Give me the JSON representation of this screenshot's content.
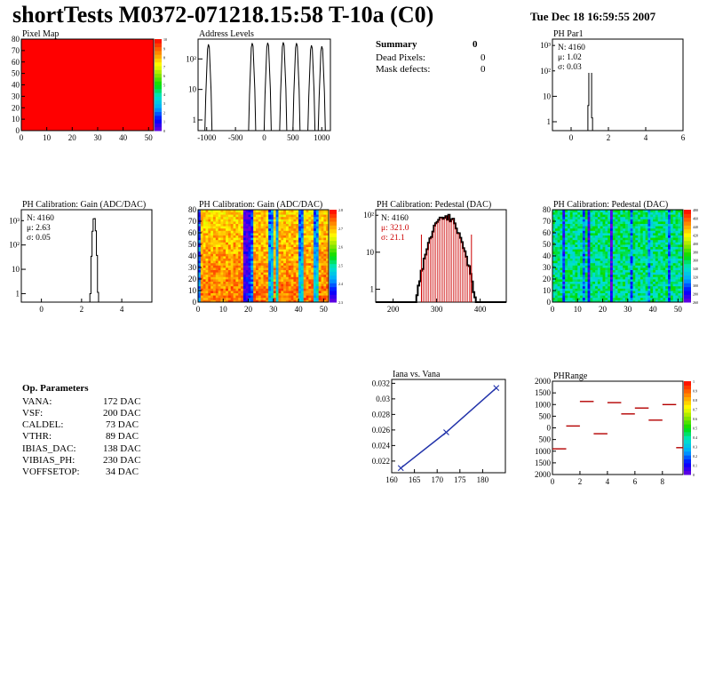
{
  "header": {
    "title": "shortTests M0372-071218.15:58 T-10a (C0)",
    "date": "Tue Dec 18 16:59:55 2007"
  },
  "summary": {
    "title": "Summary",
    "value": "0",
    "rows": [
      {
        "label": "Dead Pixels:",
        "value": "0"
      },
      {
        "label": "Mask defects:",
        "value": "0"
      }
    ]
  },
  "op_parameters": {
    "title": "Op. Parameters",
    "rows": [
      {
        "name": "VANA:",
        "value": "172 DAC"
      },
      {
        "name": "VSF:",
        "value": "200 DAC"
      },
      {
        "name": "CALDEL:",
        "value": "73 DAC"
      },
      {
        "name": "VTHR:",
        "value": "89 DAC"
      },
      {
        "name": "IBIAS_DAC:",
        "value": "138 DAC"
      },
      {
        "name": "VIBIAS_PH:",
        "value": "230 DAC"
      },
      {
        "name": "VOFFSETOP:",
        "value": "34 DAC"
      }
    ]
  },
  "colors": {
    "map_fill": "#ff0000",
    "hist_line": "#000000",
    "fit_line": "#cc0000",
    "iana_line": "#2233aa"
  },
  "chart_data": [
    {
      "id": "pixel_map",
      "type": "heatmap",
      "title": "Pixel Map",
      "xlim": [
        0,
        52
      ],
      "ylim": [
        0,
        80
      ],
      "xticks": [
        "0",
        "10",
        "20",
        "30",
        "40",
        "50"
      ],
      "yticks": [
        "0",
        "10",
        "20",
        "30",
        "40",
        "50",
        "60",
        "70",
        "80"
      ],
      "z_scale": [
        "0",
        "1",
        "2",
        "3",
        "4",
        "5",
        "6",
        "7",
        "8",
        "9",
        "10"
      ],
      "uniform_value": 10
    },
    {
      "id": "address_levels",
      "type": "line",
      "title": "Address Levels",
      "xlim": [
        -1150,
        1150
      ],
      "xticks": [
        "-1000",
        "-500",
        "0",
        "500",
        "1000"
      ],
      "yscale": "log",
      "yticks": [
        "1",
        "10",
        "10²"
      ],
      "peaks": [
        -970,
        -210,
        60,
        330,
        560,
        820,
        1000
      ],
      "peak_heights": [
        300,
        330,
        340,
        350,
        330,
        280,
        260
      ]
    },
    {
      "id": "ph_par1",
      "type": "line",
      "title": "PH Par1",
      "stats": [
        "N: 4160",
        "μ: 1.02",
        "σ: 0.03"
      ],
      "xlim": [
        -1,
        6
      ],
      "xticks": [
        "0",
        "2",
        "4",
        "6"
      ],
      "yscale": "log",
      "yticks": [
        "1",
        "10",
        "10²",
        "10³"
      ],
      "mean": 1.02,
      "sigma": 0.03,
      "peak": 650
    },
    {
      "id": "gain_hist",
      "type": "line",
      "title": "PH Calibration: Gain (ADC/DAC)",
      "stats": [
        "N: 4160",
        "μ: 2.63",
        "σ: 0.05"
      ],
      "xlim": [
        -1,
        5.5
      ],
      "xticks": [
        "0",
        "2",
        "4"
      ],
      "yscale": "log",
      "yticks": [
        "1",
        "10",
        "10²",
        "10³"
      ],
      "mean": 2.63,
      "sigma": 0.05,
      "peak": 1400
    },
    {
      "id": "gain_map",
      "type": "heatmap",
      "title": "PH Calibration: Gain (ADC/DAC)",
      "xlim": [
        0,
        52
      ],
      "ylim": [
        0,
        80
      ],
      "xticks": [
        "0",
        "10",
        "20",
        "30",
        "40",
        "50"
      ],
      "yticks": [
        "0",
        "10",
        "20",
        "30",
        "40",
        "50",
        "60",
        "70",
        "80"
      ],
      "z_scale": [
        "2.3",
        "2.4",
        "2.5",
        "2.6",
        "2.7",
        "2.8"
      ],
      "zlim": [
        2.3,
        2.8
      ]
    },
    {
      "id": "pedestal_hist",
      "type": "line",
      "title": "PH Calibration: Pedestal (DAC)",
      "stats": [
        "N: 4160",
        "μ: 321.0",
        "σ: 21.1"
      ],
      "xlim": [
        160,
        460
      ],
      "xticks": [
        "200",
        "300",
        "400"
      ],
      "yscale": "log",
      "yticks": [
        "1",
        "10",
        "10²"
      ],
      "mean": 321.0,
      "sigma": 21.1,
      "peak": 95,
      "fit_range": [
        265,
        380
      ]
    },
    {
      "id": "pedestal_map",
      "type": "heatmap",
      "title": "PH Calibration: Pedestal (DAC)",
      "xlim": [
        0,
        52
      ],
      "ylim": [
        0,
        80
      ],
      "xticks": [
        "0",
        "10",
        "20",
        "30",
        "40",
        "50"
      ],
      "yticks": [
        "0",
        "10",
        "20",
        "30",
        "40",
        "50",
        "60",
        "70",
        "80"
      ],
      "z_scale": [
        "260",
        "280",
        "300",
        "320",
        "340",
        "360",
        "380",
        "400",
        "420",
        "440",
        "460",
        "480"
      ],
      "zlim": [
        260,
        480
      ]
    },
    {
      "id": "iana_vs_vana",
      "type": "line",
      "title": "Iana vs. Vana",
      "xlim": [
        160,
        185
      ],
      "ylim": [
        0.0205,
        0.0325
      ],
      "xticks": [
        "160",
        "165",
        "170",
        "175",
        "180"
      ],
      "yticks": [
        "0.022",
        "0.024",
        "0.026",
        "0.028",
        "0.03",
        "0.032"
      ],
      "x": [
        162,
        172,
        183
      ],
      "y": [
        0.0211,
        0.0257,
        0.0314
      ]
    },
    {
      "id": "ph_range",
      "type": "scatter",
      "title": "PHRange",
      "xlim": [
        0,
        9.5
      ],
      "ylim": [
        -2000,
        2000
      ],
      "xticks": [
        "0",
        "2",
        "4",
        "6",
        "8"
      ],
      "yticks": [
        "2000",
        "1500",
        "1000",
        "500",
        "0",
        "-500",
        "-1000",
        "-1500",
        "-2000"
      ],
      "z_scale": [
        "0",
        "0.1",
        "0.2",
        "0.3",
        "0.4",
        "0.5",
        "0.6",
        "0.7",
        "0.8",
        "0.9",
        "1"
      ],
      "x": [
        0,
        1,
        2,
        3,
        4,
        5,
        6,
        7,
        8,
        9
      ],
      "y": [
        -900,
        80,
        1130,
        -250,
        1080,
        600,
        850,
        330,
        1000,
        -850
      ]
    }
  ]
}
